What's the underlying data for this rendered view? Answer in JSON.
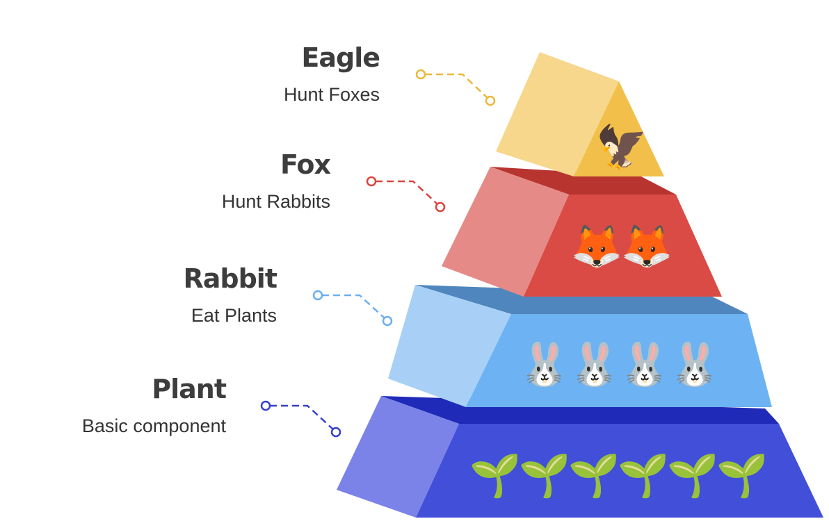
{
  "levels": [
    {
      "id": "eagle",
      "title": "Eagle",
      "description": "Hunt Foxes",
      "icon": "eagle-icon",
      "glyph": "🦅",
      "count": 1,
      "colors": {
        "side": "#f6d78c",
        "face": "#f2c04a",
        "top": "#e2a93a",
        "connector": "#e9b93c"
      }
    },
    {
      "id": "fox",
      "title": "Fox",
      "description": "Hunt Rabbits",
      "icon": "fox-icon",
      "glyph": "🦊",
      "count": 2,
      "colors": {
        "side": "#e58a87",
        "face": "#da4b45",
        "top": "#b8352f",
        "connector": "#d9443f"
      }
    },
    {
      "id": "rabbit",
      "title": "Rabbit",
      "description": "Eat Plants",
      "icon": "rabbit-icon",
      "glyph": "🐰",
      "count": 4,
      "colors": {
        "side": "#a8d0f6",
        "face": "#6db2f2",
        "top": "#4f86be",
        "connector": "#6aaef0"
      }
    },
    {
      "id": "plant",
      "title": "Plant",
      "description": "Basic component",
      "icon": "seedling-icon",
      "glyph": "🌱",
      "count": 6,
      "colors": {
        "side": "#7b83e8",
        "face": "#424fd9",
        "top": "#1f2bb8",
        "connector": "#3441c8"
      }
    }
  ]
}
